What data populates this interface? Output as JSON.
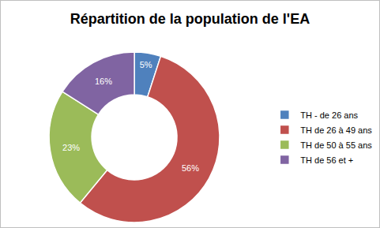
{
  "chart_data": {
    "type": "pie",
    "title": "Répartition de la population de l'EA",
    "categories": [
      "TH - de 26 ans",
      "TH de 26 à 49 ans",
      "TH de 50 à 55 ans",
      "TH de 56 et +"
    ],
    "values": [
      5,
      56,
      23,
      16
    ],
    "value_labels": [
      "5%",
      "56%",
      "23%",
      "16%"
    ],
    "colors": [
      "#4f81bd",
      "#c0504d",
      "#9bbb59",
      "#8064a2"
    ],
    "data_labels": true,
    "legend": "right"
  }
}
